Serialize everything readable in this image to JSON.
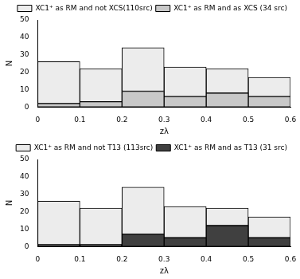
{
  "chart_data": [
    {
      "type": "histogram",
      "x_label": "zλ",
      "y_label": "N",
      "bins": [
        0,
        0.1,
        0.2,
        0.3,
        0.4,
        0.5,
        0.6
      ],
      "stacked": true,
      "series": [
        {
          "name": "XC1⁺ as RM and not XCS(110src)",
          "color": "#ececec",
          "values": [
            24,
            19,
            25,
            17,
            14,
            11
          ]
        },
        {
          "name": "XC1⁺ as RM and as XCS (34 src)",
          "color": "#c8c8c8",
          "values": [
            2,
            3,
            9,
            6,
            8,
            6
          ]
        }
      ],
      "xlim": [
        0,
        0.6
      ],
      "xticks": [
        0,
        0.1,
        0.2,
        0.3,
        0.4,
        0.5,
        0.6
      ],
      "ylim": [
        0,
        50
      ],
      "yticks": [
        0,
        10,
        20,
        30,
        40,
        50
      ],
      "grid": false,
      "legend": "top-right"
    },
    {
      "type": "histogram",
      "x_label": "zλ",
      "y_label": "N",
      "bins": [
        0,
        0.1,
        0.2,
        0.3,
        0.4,
        0.5,
        0.6
      ],
      "stacked": true,
      "series": [
        {
          "name": "XC1⁺ as RM and not T13 (113src)",
          "color": "#ececec",
          "values": [
            25,
            21,
            27,
            18,
            10,
            12
          ]
        },
        {
          "name": "XC1⁺ as RM and as T13 (31 src)",
          "color": "#404040",
          "values": [
            1,
            1,
            7,
            5,
            12,
            5
          ]
        }
      ],
      "xlim": [
        0,
        0.6
      ],
      "xticks": [
        0,
        0.1,
        0.2,
        0.3,
        0.4,
        0.5,
        0.6
      ],
      "ylim": [
        0,
        50
      ],
      "yticks": [
        0,
        10,
        20,
        30,
        40,
        50
      ],
      "grid": false,
      "legend": "top-right"
    }
  ]
}
